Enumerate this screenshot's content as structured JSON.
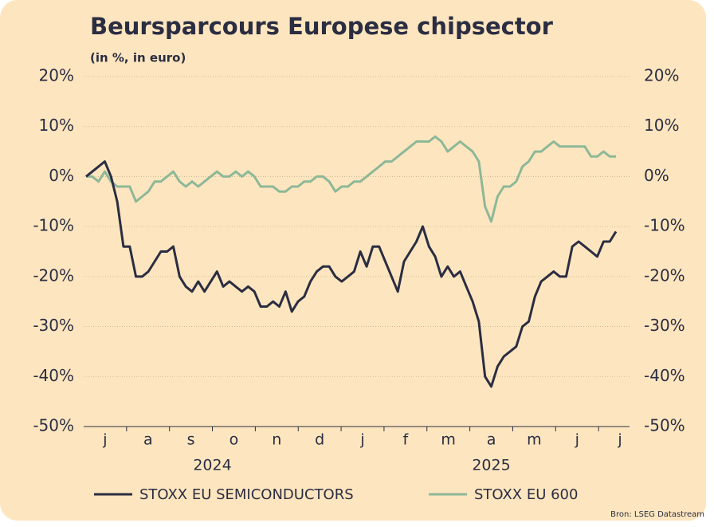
{
  "chart_data": {
    "type": "line",
    "title": "Beursparcours Europese chipsector",
    "subtitle": "(in %, in euro)",
    "months": [
      "j",
      "a",
      "s",
      "o",
      "n",
      "d",
      "j",
      "f",
      "m",
      "a",
      "m",
      "j",
      "j"
    ],
    "years": [
      "2024",
      "2025"
    ],
    "ylim": [
      -50,
      20
    ],
    "yticks": [
      {
        "value": 20,
        "label": "20%"
      },
      {
        "value": 10,
        "label": "10%"
      },
      {
        "value": 0,
        "label": "0%"
      },
      {
        "value": -10,
        "label": "-10%"
      },
      {
        "value": -20,
        "label": "-20%"
      },
      {
        "value": -30,
        "label": "-30%"
      },
      {
        "value": -40,
        "label": "-40%"
      },
      {
        "value": -50,
        "label": "-50%"
      }
    ],
    "grid": true,
    "series": [
      {
        "name": "STOXX EU SEMICONDUCTORS",
        "color": "#2b2d42",
        "values": [
          0,
          1,
          2,
          3,
          0,
          -5,
          -14,
          -14,
          -20,
          -20,
          -19,
          -17,
          -15,
          -15,
          -14,
          -20,
          -22,
          -23,
          -21,
          -23,
          -21,
          -19,
          -22,
          -21,
          -22,
          -23,
          -22,
          -23,
          -26,
          -26,
          -25,
          -26,
          -23,
          -27,
          -25,
          -24,
          -21,
          -19,
          -18,
          -18,
          -20,
          -21,
          -20,
          -19,
          -15,
          -18,
          -14,
          -14,
          -17,
          -20,
          -23,
          -17,
          -15,
          -13,
          -10,
          -14,
          -16,
          -20,
          -18,
          -20,
          -19,
          -22,
          -25,
          -29,
          -40,
          -42,
          -38,
          -36,
          -35,
          -34,
          -30,
          -29,
          -24,
          -21,
          -20,
          -19,
          -20,
          -20,
          -14,
          -13,
          -14,
          -15,
          -16,
          -13,
          -13,
          -11
        ]
      },
      {
        "name": "STOXX EU 600",
        "color": "#8db898",
        "values": [
          0,
          0,
          -1,
          1,
          -1,
          -2,
          -2,
          -2,
          -5,
          -4,
          -3,
          -1,
          -1,
          0,
          1,
          -1,
          -2,
          -1,
          -2,
          -1,
          0,
          1,
          0,
          0,
          1,
          0,
          1,
          0,
          -2,
          -2,
          -2,
          -3,
          -3,
          -2,
          -2,
          -1,
          -1,
          0,
          0,
          -1,
          -3,
          -2,
          -2,
          -1,
          -1,
          0,
          1,
          2,
          3,
          3,
          4,
          5,
          6,
          7,
          7,
          7,
          8,
          7,
          5,
          6,
          7,
          6,
          5,
          3,
          -6,
          -9,
          -4,
          -2,
          -2,
          -1,
          2,
          3,
          5,
          5,
          6,
          7,
          6,
          6,
          6,
          6,
          6,
          4,
          4,
          5,
          4,
          4
        ]
      }
    ],
    "source": "Bron: LSEG Datastream"
  }
}
